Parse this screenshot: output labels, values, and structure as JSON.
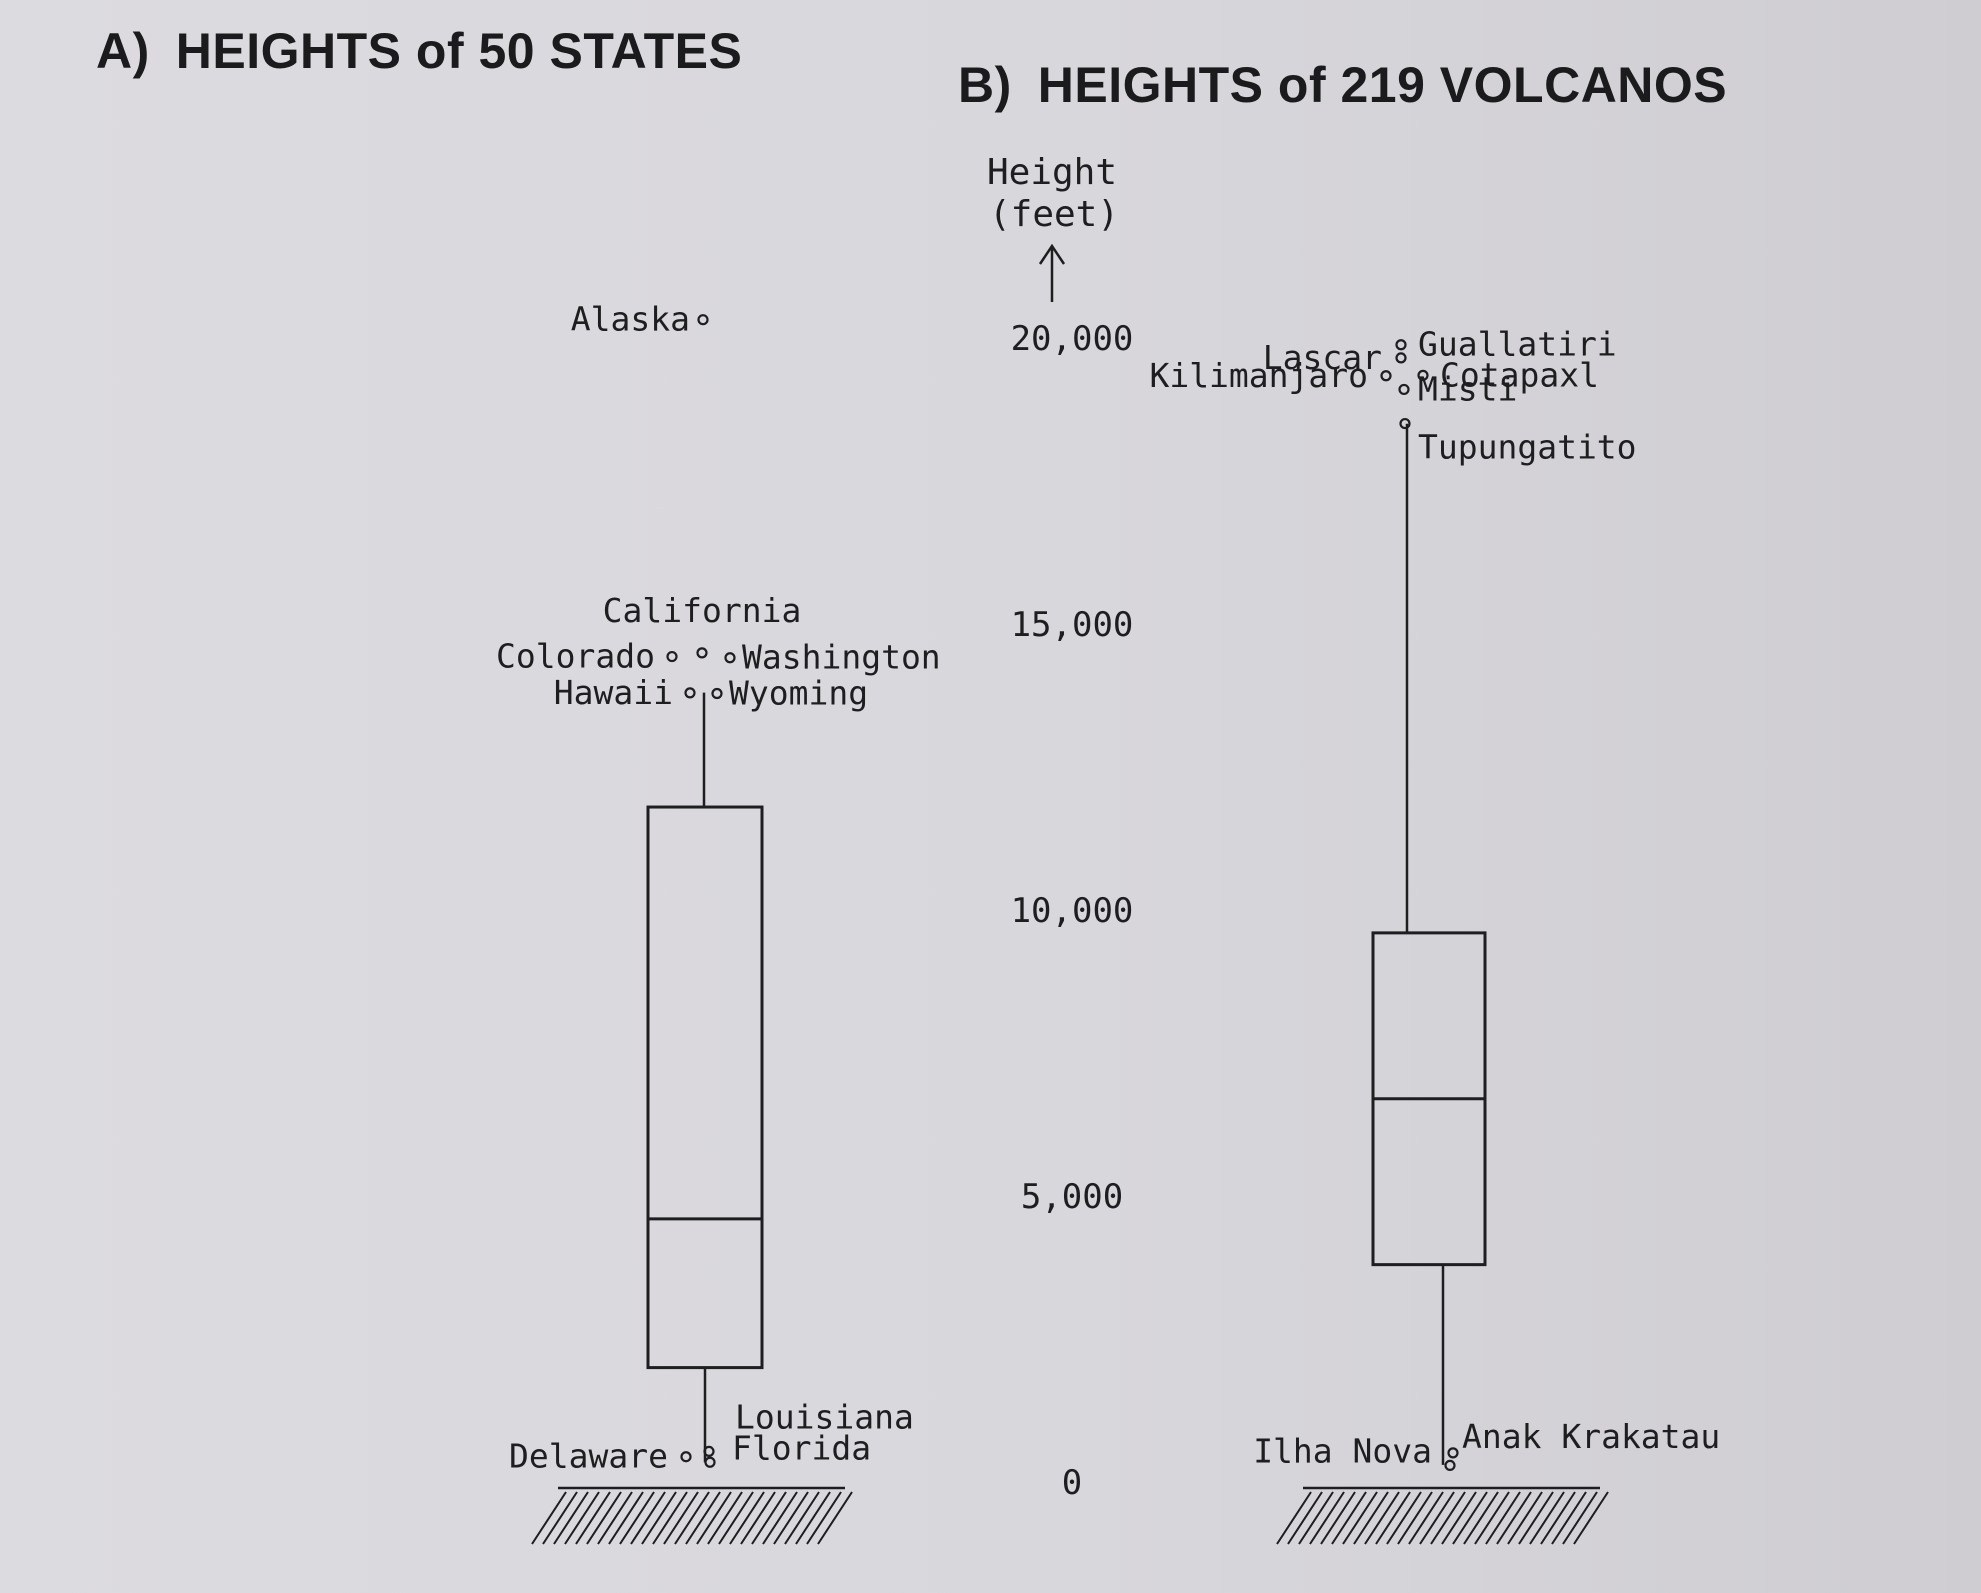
{
  "chart_data": [
    {
      "type": "box",
      "title": "HEIGHTS of 50 STATES",
      "panel_letter": "A)",
      "ylabel": "Height (feet)",
      "ylim": [
        0,
        20000
      ],
      "yticks": [
        "0",
        "5,000",
        "10,000",
        "15,000",
        "20,000"
      ],
      "grid": false,
      "box": {
        "lower_whisker": 345,
        "q1": 2000,
        "median": 4600,
        "q3": 11800,
        "upper_whisker": 13800
      },
      "outliers": [
        {
          "label": "Alaska",
          "value": 20320
        },
        {
          "label": "California",
          "value": 14495
        },
        {
          "label": "Colorado",
          "value": 14431
        },
        {
          "label": "Washington",
          "value": 14410
        },
        {
          "label": "Hawaii",
          "value": 13796
        },
        {
          "label": "Wyoming",
          "value": 13785
        },
        {
          "label": "Louisiana",
          "value": 535
        },
        {
          "label": "Delaware",
          "value": 442
        },
        {
          "label": "Florida",
          "value": 345
        }
      ]
    },
    {
      "type": "box",
      "title": "HEIGHTS of 219 VOLCANOS",
      "panel_letter": "B)",
      "ylabel": "Height (feet)",
      "ylim": [
        0,
        20000
      ],
      "yticks": [
        "0",
        "5,000",
        "10,000",
        "15,000",
        "20,000"
      ],
      "grid": false,
      "box": {
        "lower_whisker": 300,
        "q1": 3800,
        "median": 6700,
        "q3": 9600,
        "upper_whisker": 18500
      },
      "outliers": [
        {
          "label": "Guallatiri",
          "value": 19882
        },
        {
          "label": "Lascar",
          "value": 19652
        },
        {
          "label": "Cotapaxl",
          "value": 19347
        },
        {
          "label": "Kilimanjaro",
          "value": 19340
        },
        {
          "label": "Misti",
          "value": 19101
        },
        {
          "label": "Tupungatito",
          "value": 18504
        },
        {
          "label": "Anak Krakatau",
          "value": 509
        },
        {
          "label": "Ilha Nova",
          "value": 290
        }
      ]
    }
  ]
}
